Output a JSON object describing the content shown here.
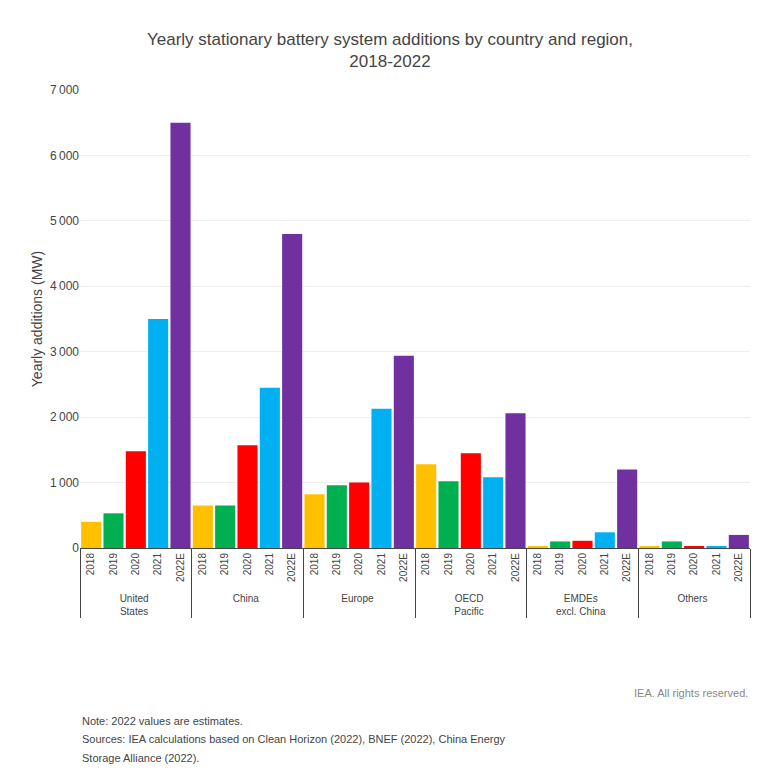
{
  "chart_data": {
    "type": "bar",
    "title": "Yearly stationary battery system additions by country and region,\n2018-2022",
    "ylabel": "Yearly additions (MW)",
    "categories": [
      "United\nStates",
      "China",
      "Europe",
      "OECD\nPacific",
      "EMDEs\nexcl. China",
      "Others"
    ],
    "series": [
      {
        "name": "2018",
        "color": "#FFC000",
        "values": [
          400,
          650,
          820,
          1280,
          30,
          20
        ]
      },
      {
        "name": "2019",
        "color": "#00B050",
        "values": [
          530,
          650,
          960,
          1020,
          100,
          100
        ]
      },
      {
        "name": "2020",
        "color": "#FF0000",
        "values": [
          1480,
          1570,
          1000,
          1450,
          110,
          30
        ]
      },
      {
        "name": "2021",
        "color": "#00B0F0",
        "values": [
          3500,
          2450,
          2130,
          1080,
          240,
          30
        ]
      },
      {
        "name": "2022E",
        "color": "#7030A0",
        "values": [
          6500,
          4800,
          2940,
          2060,
          1200,
          200
        ]
      }
    ],
    "ylim": [
      0,
      7000
    ],
    "yticks": [
      0,
      {
        "value": 1000,
        "label": "1 000"
      },
      {
        "value": 2000,
        "label": "2 000"
      },
      {
        "value": 3000,
        "label": "3 000"
      },
      {
        "value": 4000,
        "label": "4 000"
      },
      {
        "value": 5000,
        "label": "5 000"
      },
      {
        "value": 6000,
        "label": "6 000"
      },
      {
        "value": 7000,
        "label": "7 000"
      }
    ],
    "grid": true,
    "annotations": [
      "IEA. All rights reserved.",
      "Note: 2022 values are estimates.",
      "Sources: IEA calculations based on Clean Horizon (2022), BNEF (2022), China Energy",
      "Storage Alliance (2022)."
    ]
  }
}
